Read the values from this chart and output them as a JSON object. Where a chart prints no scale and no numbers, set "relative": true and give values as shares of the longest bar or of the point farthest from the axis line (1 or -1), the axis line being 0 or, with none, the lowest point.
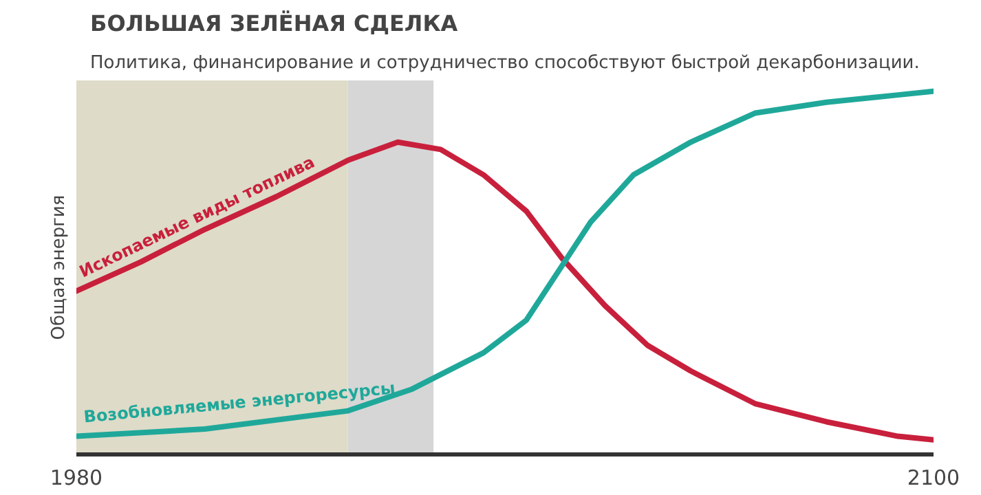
{
  "chart_data": {
    "type": "line",
    "title": "БОЛЬШАЯ ЗЕЛЁНАЯ СДЕЛКА",
    "subtitle": "Политика, финансирование и сотрудничество способствуют быстрой декарбонизации.",
    "ylabel": "Общая энергия",
    "relative": true,
    "xlim": [
      1980,
      2100
    ],
    "xticks": [
      1980,
      2100
    ],
    "series": [
      {
        "name": "Ископаемые виды топлива",
        "color": "#c8203c",
        "x": [
          1980,
          1989,
          1998,
          2008,
          2018,
          2025,
          2031,
          2037,
          2043,
          2048,
          2054,
          2060,
          2066,
          2075,
          2085,
          2095,
          2100
        ],
        "values": [
          0.45,
          0.53,
          0.62,
          0.71,
          0.81,
          0.86,
          0.84,
          0.77,
          0.67,
          0.54,
          0.41,
          0.3,
          0.23,
          0.14,
          0.09,
          0.05,
          0.04
        ]
      },
      {
        "name": "Возобновляемые энергоресурсы",
        "color": "#1fa89a",
        "x": [
          1980,
          1998,
          2018,
          2027,
          2037,
          2043,
          2048,
          2052,
          2058,
          2066,
          2075,
          2085,
          2095,
          2100
        ],
        "values": [
          0.05,
          0.07,
          0.12,
          0.18,
          0.28,
          0.37,
          0.52,
          0.64,
          0.77,
          0.86,
          0.94,
          0.97,
          0.99,
          1.0
        ]
      }
    ],
    "bands": [
      {
        "axis": "x",
        "from": 1980,
        "to": 2018,
        "color": "#dedbc8"
      },
      {
        "axis": "x",
        "from": 2018,
        "to": 2030,
        "color": "#d6d6d6"
      }
    ]
  }
}
